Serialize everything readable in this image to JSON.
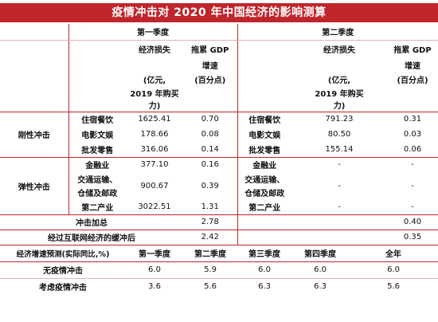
{
  "title": "疫情冲击对 2020 年中国经济的影响测算",
  "header": {
    "q1": "第一季度",
    "q2": "第二季度",
    "loss_label": "经济损失",
    "loss_unit_1": "(亿元,",
    "loss_unit_2": "2019 年购买",
    "loss_unit_3": "力)",
    "gdp_label_1": "拖累 GDP",
    "gdp_label_2": "增速",
    "gdp_unit": "(百分点)"
  },
  "rigid": {
    "group": "刚性冲击",
    "rows": [
      {
        "q1_sector": "住宿餐饮",
        "q1_loss": "1625.41",
        "q1_gdp": "0.70",
        "q2_sector": "住宿餐饮",
        "q2_loss": "791.23",
        "q2_gdp": "0.31"
      },
      {
        "q1_sector": "电影文娱",
        "q1_loss": "178.66",
        "q1_gdp": "0.08",
        "q2_sector": "电影文娱",
        "q2_loss": "80.50",
        "q2_gdp": "0.03"
      },
      {
        "q1_sector": "批发零售",
        "q1_loss": "316.06",
        "q1_gdp": "0.14",
        "q2_sector": "批发零售",
        "q2_loss": "155.14",
        "q2_gdp": "0.06"
      }
    ]
  },
  "elastic": {
    "group": "弹性冲击",
    "r1": {
      "q1_sector": "金融业",
      "q1_loss": "377.10",
      "q1_gdp": "0.16",
      "q2_sector": "金融业",
      "q2_loss": "-",
      "q2_gdp": "-"
    },
    "r2": {
      "q1_sector_1": "交通运输、",
      "q1_sector_2": "仓储及邮政",
      "q1_loss": "900.67",
      "q1_gdp": "0.39",
      "q2_sector_1": "交通运输、",
      "q2_sector_2": "仓储及邮政",
      "q2_loss": "-",
      "q2_gdp": "-"
    },
    "r3": {
      "q1_sector": "第二产业",
      "q1_loss": "3022.51",
      "q1_gdp": "1.31",
      "q2_sector": "第二产业",
      "q2_loss": "-",
      "q2_gdp": "-"
    }
  },
  "summary": {
    "shock_total_label": "冲击加总",
    "shock_total_q1": "2.78",
    "shock_total_q2": "0.40",
    "buffer_label": "经过互联网经济的缓冲后",
    "buffer_q1": "2.42",
    "buffer_q2": "0.35"
  },
  "forecast": {
    "label": "经济增速预测(实际同比,%)",
    "cols": [
      "第一季度",
      "第二季度",
      "第三季度",
      "第四季度",
      "全年"
    ],
    "rows": [
      {
        "name": "无疫情冲击",
        "values": [
          "6.0",
          "5.9",
          "6.0",
          "6.0",
          "6.0"
        ]
      },
      {
        "name": "考虑疫情冲击",
        "values": [
          "3.6",
          "5.6",
          "6.3",
          "6.3",
          "5.6"
        ]
      }
    ]
  }
}
